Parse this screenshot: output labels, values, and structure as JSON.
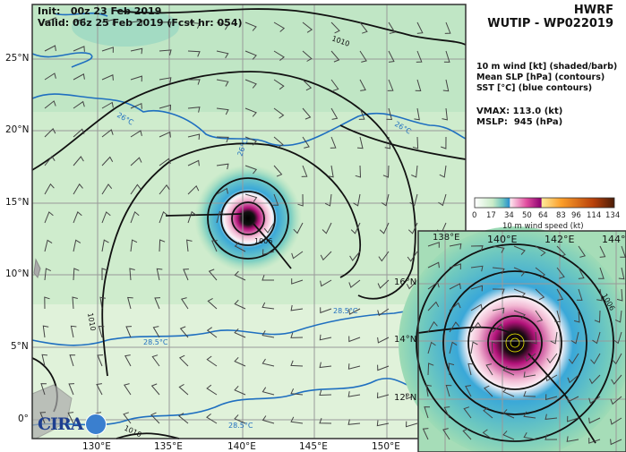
{
  "header": {
    "model": "HWRF",
    "storm": "WUTIP - WP022019"
  },
  "times": {
    "init": "Init:   00z 23 Feb 2019",
    "valid": "Valid: 06z 25 Feb 2019 (Fcst hr: 054)"
  },
  "legend": {
    "line1": "10 m wind [kt] (shaded/barb)",
    "line2": "Mean SLP [hPa] (contours)",
    "line3": "SST [°C] (blue contours)"
  },
  "stats": {
    "vmax": "VMAX: 113.0 (kt)",
    "mslp": "MSLP:  945 (hPa)"
  },
  "colorbar": {
    "ticks": [
      "0",
      "17",
      "34",
      "50",
      "64",
      "83",
      "96",
      "114",
      "134"
    ],
    "label": "10 m wind speed (kt)"
  },
  "main_map": {
    "lat_labels": [
      "25°N",
      "20°N",
      "15°N",
      "10°N",
      "5°N",
      "0°"
    ],
    "lon_labels": [
      "130°E",
      "135°E",
      "140°E",
      "145°E",
      "150°E"
    ],
    "contour_labels": [
      "1010",
      "1010",
      "1010",
      "26°C",
      "26°C",
      "26°C",
      "28.5°C",
      "28.5°C",
      "28.5°C",
      "1006"
    ]
  },
  "inset_map": {
    "lon_labels": [
      "138°E",
      "140°E",
      "142°E",
      "144°E"
    ],
    "lat_labels": [
      "16°N",
      "14°N",
      "12°N"
    ],
    "contour_labels": [
      "1006"
    ]
  },
  "logo": {
    "text": "CIRA"
  }
}
